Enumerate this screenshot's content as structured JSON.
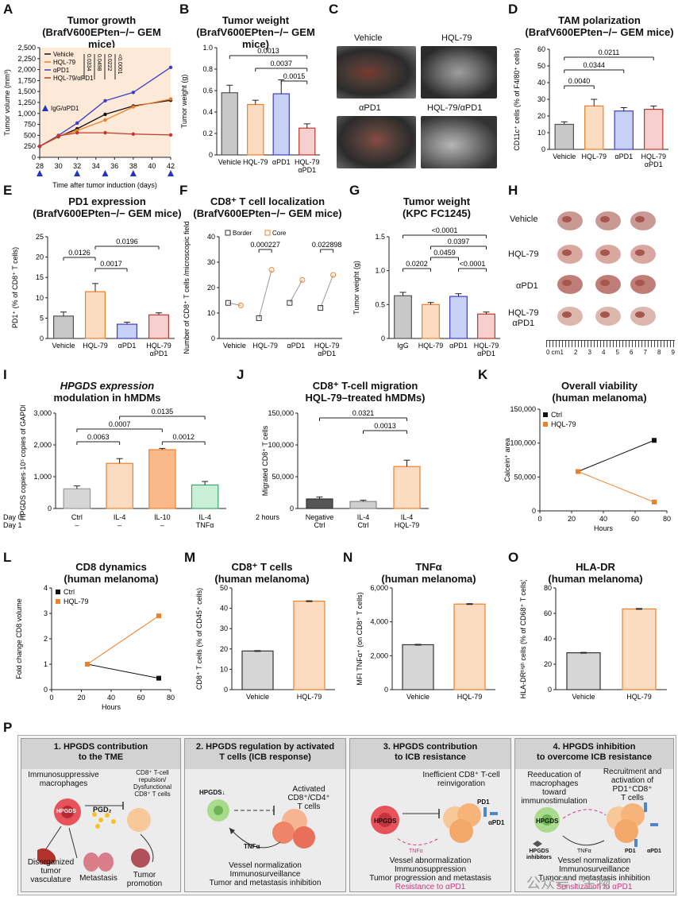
{
  "panels": {
    "A": {
      "letter": "A",
      "title": "Tumor growth",
      "subtitle": "(BrafV600EPten−/− GEM mice)",
      "ylabel": "Tumor volume (mm³)",
      "xlabel": "Time after tumor induction (days)",
      "legend": [
        "Vehicle",
        "HQL-79",
        "αPD1",
        "HQL-79/αPD1"
      ],
      "treatment_label": "IgG/αPD1",
      "pvalues": [
        "0.0334",
        "0.0498",
        "0.0222",
        "<0.0001"
      ]
    },
    "B": {
      "letter": "B",
      "title": "Tumor weight",
      "subtitle": "(BrafV600EPten−/− GEM mice)",
      "ylabel": "Tumor weight (g)",
      "pvalues": [
        "0.0013",
        "0.0037",
        "0.0015"
      ]
    },
    "C": {
      "letter": "C",
      "labels": [
        "Vehicle",
        "HQL-79",
        "αPD1",
        "HQL-79/αPD1"
      ]
    },
    "D": {
      "letter": "D",
      "title": "TAM polarization",
      "subtitle": "(BrafV600EPten−/− GEM mice)",
      "ylabel": "CD11c⁺ cells (% of F4/80⁺ cells)",
      "pvalues": [
        "0.0211",
        "0.0344",
        "0.0040"
      ]
    },
    "E": {
      "letter": "E",
      "title": "PD1 expression",
      "subtitle": "(BrafV600EPten−/− GEM mice)",
      "ylabel": "PD1⁺ (% of CD8⁺ T cells)",
      "pvalues": [
        "0.0196",
        "0.0126",
        "0.0017"
      ]
    },
    "F": {
      "letter": "F",
      "title": "CD8⁺ T cell localization",
      "subtitle": "(BrafV600EPten−/− GEM mice)",
      "ylabel": "Number of CD8⁺ T cells /microscopic field",
      "legend": [
        "Border",
        "Core"
      ],
      "pvalues": [
        "0.000227",
        "0.022898"
      ]
    },
    "G": {
      "letter": "G",
      "title": "Tumor weight",
      "subtitle": "(KPC FC1245)",
      "ylabel": "Tumor weight (g)",
      "pvalues": [
        "<0.0001",
        "0.0397",
        "0.0459",
        "0.0202",
        "<0.0001"
      ]
    },
    "H": {
      "letter": "H",
      "labels": [
        "Vehicle",
        "HQL-79",
        "αPD1",
        "HQL-79",
        "αPD1"
      ],
      "ruler": [
        "0 cm",
        "1",
        "2",
        "3",
        "4",
        "5",
        "6",
        "7",
        "8",
        "9"
      ]
    },
    "I": {
      "letter": "I",
      "title": "HPGDS expression",
      "title2": "modulation in hMDMs",
      "ylabel": "HPGDS copies·10⁵ copies of GAPDH",
      "row_labels": [
        "Day 0",
        "Day 1"
      ],
      "cats": [
        "Ctrl",
        "IL-4",
        "IL-10",
        "IL-4"
      ],
      "cats2": [
        "–",
        "–",
        "–",
        "TNFα"
      ],
      "pvalues": [
        "0.0135",
        "0.0007",
        "0.0063",
        "0.0012"
      ]
    },
    "J": {
      "letter": "J",
      "title": "CD8⁺ T-cell migration",
      "title2": "HQL-79–treated hMDMs)",
      "ylabel": "Migrated CD8⁺ T cells",
      "xprefix": "2 hours",
      "cats": [
        "Negative",
        "IL-4",
        "IL-4"
      ],
      "cats2": [
        "Ctrl",
        "Ctrl",
        "HQL-79"
      ],
      "pvalues": [
        "0.0321",
        "0.0013"
      ]
    },
    "K": {
      "letter": "K",
      "title": "Overall viability",
      "title2": "(human melanoma)",
      "ylabel": "Calcein⁺ area",
      "xlabel": "Hours",
      "legend": [
        "Ctrl",
        "HQL-79"
      ]
    },
    "L": {
      "letter": "L",
      "title": "CD8 dynamics",
      "title2": "(human melanoma)",
      "ylabel": "Fold change CD8 volume",
      "xlabel": "Hours",
      "legend": [
        "Ctrl",
        "HQL-79"
      ]
    },
    "M": {
      "letter": "M",
      "title": "CD8⁺ T cells",
      "title2": "(human melanoma)",
      "ylabel": "CD8⁺ T cells (% of CD45⁺ cells)"
    },
    "N": {
      "letter": "N",
      "title": "TNFα",
      "title2": "(human melanoma)",
      "ylabel": "MFI TNFα⁺ (on CD8⁺ T cells)"
    },
    "O": {
      "letter": "O",
      "title": "HLA-DR",
      "title2": "(human melanoma)",
      "ylabel": "HLA-DRʰⁱᵍʰ cells (% of CD68⁺ T cells)"
    },
    "P": {
      "letter": "P"
    }
  },
  "chart_data": [
    {
      "id": "A",
      "type": "line",
      "x": [
        28,
        30,
        32,
        35,
        38,
        42
      ],
      "xticks": [
        28,
        30,
        32,
        34,
        36,
        38,
        40,
        42
      ],
      "ylim": [
        0,
        2500
      ],
      "yticks": [
        0,
        250,
        500,
        750,
        1000,
        1250,
        1500,
        1750,
        2000,
        2250,
        2500
      ],
      "ytick_labels": [
        "0",
        "250",
        "500",
        "750",
        "1,000",
        "1,250",
        "1,500",
        "1,750",
        "2,000",
        "2,250",
        "2,500"
      ],
      "series": [
        {
          "name": "Vehicle",
          "color": "#111111",
          "values": [
            250,
            470,
            650,
            980,
            1170,
            1300
          ]
        },
        {
          "name": "HQL-79",
          "color": "#f07f2a",
          "values": [
            250,
            480,
            610,
            850,
            1150,
            1330
          ]
        },
        {
          "name": "αPD1",
          "color": "#3a3fc9",
          "values": [
            250,
            500,
            780,
            1290,
            1480,
            2050
          ]
        },
        {
          "name": "HQL-79/αPD1",
          "color": "#c0392b",
          "values": [
            250,
            490,
            560,
            560,
            530,
            510
          ]
        }
      ]
    },
    {
      "id": "B",
      "type": "bar",
      "categories": [
        "Vehicle",
        "HQL-79",
        "αPD1",
        "HQL-79 αPD1"
      ],
      "values": [
        0.58,
        0.47,
        0.57,
        0.25
      ],
      "ylim": [
        0,
        1.0
      ],
      "yticks": [
        0,
        0.2,
        0.4,
        0.6,
        0.8,
        1.0
      ],
      "ytick_labels": [
        "0",
        "0.2",
        "0.4",
        "0.6",
        "0.8",
        "1.0"
      ]
    },
    {
      "id": "D",
      "type": "bar",
      "categories": [
        "Vehicle",
        "HQL-79",
        "αPD1",
        "HQL-79 αPD1"
      ],
      "values": [
        15,
        26,
        23,
        24
      ],
      "ylim": [
        0,
        60
      ],
      "yticks": [
        0,
        10,
        20,
        30,
        40,
        50,
        60
      ],
      "ytick_labels": [
        "0",
        "10",
        "20",
        "30",
        "40",
        "50",
        "60"
      ]
    },
    {
      "id": "E",
      "type": "bar",
      "categories": [
        "Vehicle",
        "HQL-79",
        "αPD1",
        "HQL-79 αPD1"
      ],
      "values": [
        5.5,
        11.5,
        3.5,
        5.8
      ],
      "ylim": [
        0,
        25
      ],
      "yticks": [
        0,
        5,
        10,
        15,
        20,
        25
      ],
      "ytick_labels": [
        "0",
        "5",
        "10",
        "15",
        "20",
        "25"
      ]
    },
    {
      "id": "F",
      "type": "scatter",
      "categories": [
        "Vehicle",
        "HQL-79",
        "αPD1",
        "HQL-79 αPD1"
      ],
      "ylim": [
        0,
        40
      ],
      "yticks": [
        0,
        10,
        20,
        30,
        40
      ],
      "ytick_labels": [
        "0",
        "10",
        "20",
        "30",
        "40"
      ],
      "series": [
        {
          "name": "Border",
          "color": "#333333",
          "values": [
            14,
            8,
            14,
            12
          ]
        },
        {
          "name": "Core",
          "color": "#f07f2a",
          "values": [
            13,
            27,
            23,
            25
          ]
        }
      ]
    },
    {
      "id": "G",
      "type": "bar",
      "categories": [
        "IgG",
        "HQL-79",
        "αPD1",
        "HQL-79 αPD1"
      ],
      "values": [
        0.63,
        0.5,
        0.62,
        0.36
      ],
      "ylim": [
        0,
        1.5
      ],
      "yticks": [
        0,
        0.5,
        1.0,
        1.5
      ],
      "ytick_labels": [
        "0",
        "0.5",
        "1.0",
        "1.5"
      ]
    },
    {
      "id": "I",
      "type": "bar",
      "categories": [
        "Ctrl",
        "IL-4",
        "IL-10",
        "IL-4 TNFα"
      ],
      "values": [
        620,
        1420,
        1850,
        740
      ],
      "ylim": [
        0,
        3000
      ],
      "yticks": [
        0,
        1000,
        2000,
        3000
      ],
      "ytick_labels": [
        "0",
        "1,000",
        "2,000",
        "3,000"
      ]
    },
    {
      "id": "J",
      "type": "bar",
      "categories": [
        "Negative Ctrl",
        "IL-4 Ctrl",
        "IL-4 HQL-79"
      ],
      "values": [
        15000,
        11000,
        66000
      ],
      "ylim": [
        0,
        150000
      ],
      "yticks": [
        0,
        50000,
        100000,
        150000
      ],
      "ytick_labels": [
        "0",
        "50,000",
        "100,000",
        "150,000"
      ]
    },
    {
      "id": "K",
      "type": "line",
      "x": [
        24,
        72
      ],
      "xlim": [
        0,
        80
      ],
      "xticks": [
        0,
        20,
        40,
        60,
        80
      ],
      "ylim": [
        0,
        150000
      ],
      "yticks": [
        0,
        50000,
        100000,
        150000
      ],
      "ytick_labels": [
        "0",
        "50,000",
        "100,000",
        "150,000"
      ],
      "series": [
        {
          "name": "Ctrl",
          "color": "#111111",
          "values": [
            58000,
            104000
          ]
        },
        {
          "name": "HQL-79",
          "color": "#f07f2a",
          "values": [
            58000,
            13000
          ]
        }
      ]
    },
    {
      "id": "L",
      "type": "line",
      "x": [
        24,
        72
      ],
      "xlim": [
        0,
        80
      ],
      "xticks": [
        0,
        20,
        40,
        60,
        80
      ],
      "ylim": [
        0,
        4
      ],
      "yticks": [
        0,
        1,
        2,
        3,
        4
      ],
      "ytick_labels": [
        "0",
        "1",
        "2",
        "3",
        "4"
      ],
      "series": [
        {
          "name": "Ctrl",
          "color": "#111111",
          "values": [
            1.0,
            0.45
          ]
        },
        {
          "name": "HQL-79",
          "color": "#f07f2a",
          "values": [
            1.0,
            2.9
          ]
        }
      ]
    },
    {
      "id": "M",
      "type": "bar",
      "categories": [
        "Vehicle",
        "HQL-79"
      ],
      "values": [
        19,
        43.5
      ],
      "ylim": [
        0,
        50
      ],
      "yticks": [
        0,
        10,
        20,
        30,
        40,
        50
      ],
      "ytick_labels": [
        "0",
        "10",
        "20",
        "30",
        "40",
        "50"
      ]
    },
    {
      "id": "N",
      "type": "bar",
      "categories": [
        "Vehicle",
        "HQL-79"
      ],
      "values": [
        2650,
        5050
      ],
      "ylim": [
        0,
        6000
      ],
      "yticks": [
        0,
        2000,
        4000,
        6000
      ],
      "ytick_labels": [
        "0",
        "2,000",
        "4,000",
        "6,000"
      ]
    },
    {
      "id": "O",
      "type": "bar",
      "categories": [
        "Vehicle",
        "HQL-79"
      ],
      "values": [
        29,
        63.5
      ],
      "ylim": [
        0,
        80
      ],
      "yticks": [
        0,
        20,
        40,
        60,
        80
      ],
      "ytick_labels": [
        "0",
        "20",
        "40",
        "60",
        "80"
      ]
    }
  ],
  "schematic": {
    "box1": {
      "title": "1. HPGDS contribution",
      "title2": "to the TME",
      "l1": "Immunosuppressive",
      "l2": "macrophages",
      "l3": "CD8⁺ T-cell",
      "l4": "repulsion/",
      "l5": "Dysfunctional",
      "l6": "CD8⁺ T cells",
      "hp": "HPGDS",
      "pgd": "PGD₂",
      "d1": "Disorganized",
      "d2": "tumor",
      "d3": "vasculature",
      "met": "Metastasis",
      "tp1": "Tumor",
      "tp2": "promotion"
    },
    "box2": {
      "title": "2. HPGDS regulation by activated",
      "title2": "T cells (ICB response)",
      "hp": "HPGDS↓",
      "act1": "Activated CD8⁺/CD4⁺",
      "act2": "T cells",
      "tnf": "TNFα",
      "v1": "Vessel normalization",
      "v2": "Immunosurveillance",
      "v3": "Tumor and metastasis inhibition"
    },
    "box3": {
      "title": "3. HPGDS contribution",
      "title2": "to ICB resistance",
      "i1": "Inefficient CD8⁺ T-cell",
      "i2": "reinvigoration",
      "hp": "HPGDS",
      "pd1": "PD1",
      "apd1": "αPD1",
      "tnf": "TNFα",
      "v1": "Vessel abnormalization",
      "v2": "Immunosuppression",
      "v3": "Tumor progression and metastasis",
      "res": "Resistance to αPD1"
    },
    "box4": {
      "title": "4. HPGDS inhibition",
      "title2": "to overcome ICB resistance",
      "r1": "Reeducation of",
      "r2": "macrophages toward",
      "r3": "immunostimulation",
      "a1": "Recruitment and",
      "a2": "activation of PD1⁺CD8⁺",
      "a3": "T cells",
      "hp": "HPGDS",
      "inh1": "HPGDS",
      "inh2": "inhibitors",
      "tnf": "TNFα",
      "pd1": "PD1",
      "apd1": "αPD1",
      "v1": "Vessel normalization",
      "v2": "Immunosurveillance",
      "v3": "Tumor and metastasis inhibition",
      "sens": "Sensitization to αPD1"
    },
    "watermark": "公众号 · 生物"
  },
  "colors": {
    "vehicle": "#c8c8c8",
    "hql": "#fcdcc0",
    "hql_edge": "#f07f2a",
    "apd1": "#c7d0f5",
    "apd1_edge": "#3a3fc9",
    "combo": "#f6cfcf",
    "combo_edge": "#c0392b",
    "pink": "#d63384"
  }
}
